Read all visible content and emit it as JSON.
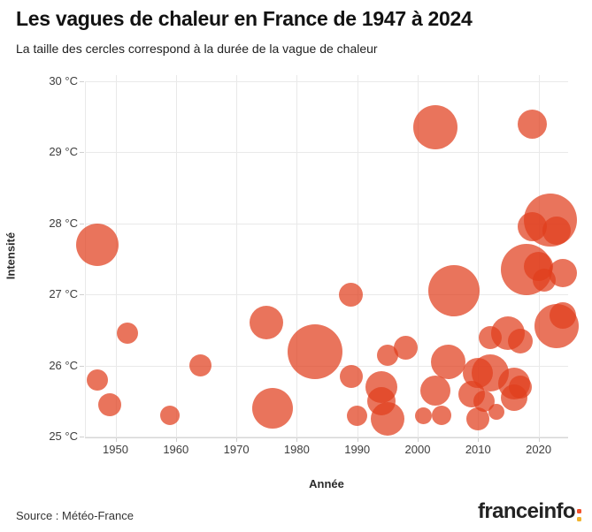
{
  "header": {
    "title": "Les vagues de chaleur en France de 1947 à 2024",
    "subtitle": "La taille des cercles correspond à la durée de la vague de chaleur"
  },
  "chart_data": {
    "type": "scatter",
    "subtype": "bubble",
    "title": "Les vagues de chaleur en France de 1947 à 2024",
    "size_note": "La taille des cercles correspond à la durée de la vague de chaleur",
    "xlabel": "Année",
    "ylabel": "Intensité",
    "xlim": [
      1945,
      2025
    ],
    "ylim": [
      25,
      30.1
    ],
    "grid": true,
    "legend": "none",
    "x_ticks": [
      1950,
      1960,
      1970,
      1980,
      1990,
      2000,
      2010,
      2020
    ],
    "y_ticks": [
      {
        "v": 30,
        "label": "30 °C"
      },
      {
        "v": 29,
        "label": "29 °C"
      },
      {
        "v": 28,
        "label": "28 °C"
      },
      {
        "v": 27,
        "label": "27 °C"
      },
      {
        "v": 26,
        "label": "26 °C"
      },
      {
        "v": 25,
        "label": "25 °C"
      }
    ],
    "points": [
      {
        "year": 1947,
        "intensity": 27.7,
        "r": 24
      },
      {
        "year": 1947,
        "intensity": 25.8,
        "r": 12
      },
      {
        "year": 1949,
        "intensity": 25.45,
        "r": 13
      },
      {
        "year": 1952,
        "intensity": 26.45,
        "r": 12
      },
      {
        "year": 1959,
        "intensity": 25.3,
        "r": 11
      },
      {
        "year": 1964,
        "intensity": 26.0,
        "r": 12.5
      },
      {
        "year": 1975,
        "intensity": 26.6,
        "r": 19
      },
      {
        "year": 1976,
        "intensity": 25.4,
        "r": 23
      },
      {
        "year": 1983,
        "intensity": 26.2,
        "r": 31
      },
      {
        "year": 1989,
        "intensity": 27.0,
        "r": 13.5
      },
      {
        "year": 1989,
        "intensity": 25.85,
        "r": 13
      },
      {
        "year": 1990,
        "intensity": 25.3,
        "r": 11.5
      },
      {
        "year": 1994,
        "intensity": 25.7,
        "r": 18
      },
      {
        "year": 1994,
        "intensity": 25.5,
        "r": 16
      },
      {
        "year": 1995,
        "intensity": 25.25,
        "r": 19
      },
      {
        "year": 1995,
        "intensity": 26.15,
        "r": 12
      },
      {
        "year": 1998,
        "intensity": 26.25,
        "r": 13.5
      },
      {
        "year": 2001,
        "intensity": 25.3,
        "r": 9.5
      },
      {
        "year": 2003,
        "intensity": 29.35,
        "r": 25
      },
      {
        "year": 2003,
        "intensity": 25.65,
        "r": 17
      },
      {
        "year": 2004,
        "intensity": 25.3,
        "r": 11
      },
      {
        "year": 2005,
        "intensity": 26.05,
        "r": 19.5
      },
      {
        "year": 2006,
        "intensity": 27.05,
        "r": 29
      },
      {
        "year": 2009,
        "intensity": 25.6,
        "r": 15
      },
      {
        "year": 2010,
        "intensity": 25.25,
        "r": 13
      },
      {
        "year": 2010,
        "intensity": 25.9,
        "r": 17
      },
      {
        "year": 2011,
        "intensity": 25.5,
        "r": 12
      },
      {
        "year": 2012,
        "intensity": 25.9,
        "r": 21
      },
      {
        "year": 2012,
        "intensity": 26.4,
        "r": 13
      },
      {
        "year": 2013,
        "intensity": 25.35,
        "r": 9
      },
      {
        "year": 2015,
        "intensity": 26.45,
        "r": 19
      },
      {
        "year": 2016,
        "intensity": 25.75,
        "r": 18
      },
      {
        "year": 2016,
        "intensity": 25.55,
        "r": 15
      },
      {
        "year": 2017,
        "intensity": 25.7,
        "r": 13
      },
      {
        "year": 2017,
        "intensity": 26.35,
        "r": 14
      },
      {
        "year": 2018,
        "intensity": 27.35,
        "r": 29
      },
      {
        "year": 2019,
        "intensity": 29.4,
        "r": 16.5
      },
      {
        "year": 2019,
        "intensity": 27.95,
        "r": 16.5
      },
      {
        "year": 2020,
        "intensity": 27.4,
        "r": 16.5
      },
      {
        "year": 2021,
        "intensity": 27.2,
        "r": 13
      },
      {
        "year": 2022,
        "intensity": 28.05,
        "r": 30
      },
      {
        "year": 2023,
        "intensity": 27.9,
        "r": 16
      },
      {
        "year": 2023,
        "intensity": 26.55,
        "r": 25
      },
      {
        "year": 2024,
        "intensity": 27.3,
        "r": 16
      },
      {
        "year": 2024,
        "intensity": 26.7,
        "r": 15
      }
    ]
  },
  "colors": {
    "bubble": "rgba(225,62,29,0.72)",
    "grid": "#e9e9e9",
    "title": "#121212"
  },
  "footer": {
    "source": "Source : Météo-France",
    "logo_text": "franceinfo",
    "logo_colon_top_color": "#f1502c",
    "logo_colon_bottom_color": "#f0b32e"
  }
}
